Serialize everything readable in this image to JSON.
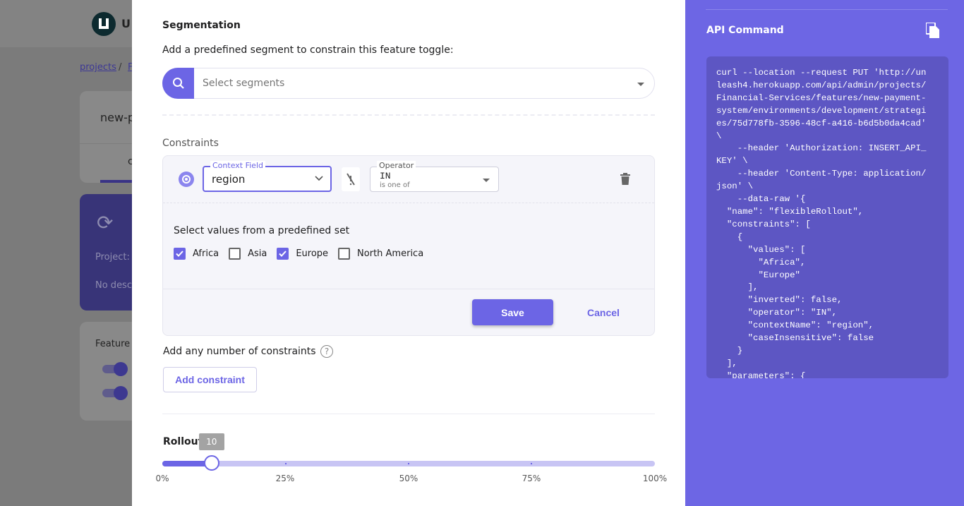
{
  "background": {
    "logo_text": "U",
    "breadcrumb": [
      "projects",
      "/",
      "F"
    ],
    "feature_title": "new-p",
    "tab_partial": "c",
    "project_label": "Project:",
    "description": "No desc",
    "features_label": "Feature"
  },
  "segmentation": {
    "title": "Segmentation",
    "description": "Add a predefined segment to constrain this feature toggle:",
    "search_placeholder": "Select segments"
  },
  "constraints": {
    "title": "Constraints",
    "context_field_label": "Context Field",
    "context_field_value": "region",
    "operator_label": "Operator",
    "operator_value": "IN",
    "operator_description": "is one of",
    "values_title": "Select values from a predefined set",
    "options": [
      {
        "label": "Africa",
        "checked": true
      },
      {
        "label": "Asia",
        "checked": false
      },
      {
        "label": "Europe",
        "checked": true
      },
      {
        "label": "North America",
        "checked": false
      }
    ],
    "save_label": "Save",
    "cancel_label": "Cancel",
    "add_any_text": "Add any number of constraints",
    "add_button": "Add constraint"
  },
  "rollout": {
    "title": "Rollout",
    "value": 10,
    "value_label": "10",
    "marks": [
      "0%",
      "25%",
      "50%",
      "75%",
      "100%"
    ]
  },
  "api": {
    "title": "API Command",
    "code": "curl --location --request PUT 'http://un\nleash4.herokuapp.com/api/admin/projects/\nFinancial-Services/features/new-payment-\nsystem/environments/development/strategi\nes/75d778fb-3596-48cf-a416-b6d5b0da4cad'\n\\\n    --header 'Authorization: INSERT_API_\nKEY' \\\n    --header 'Content-Type: application/\njson' \\\n    --data-raw '{\n  \"name\": \"flexibleRollout\",\n  \"constraints\": [\n    {\n      \"values\": [\n        \"Africa\",\n        \"Europe\"\n      ],\n      \"inverted\": false,\n      \"operator\": \"IN\",\n      \"contextName\": \"region\",\n      \"caseInsensitive\": false\n    }\n  ],\n  \"parameters\": {"
  },
  "colors": {
    "accent": "#6c65e5",
    "panel": "#6d66e4",
    "code_bg": "#5d56c3"
  }
}
